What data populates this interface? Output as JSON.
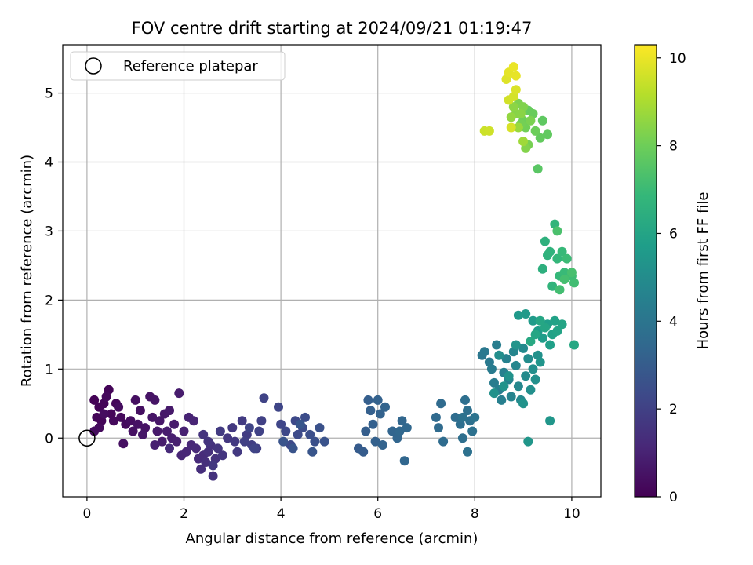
{
  "chart_data": {
    "type": "scatter",
    "title": "FOV centre drift starting at 2024/09/21 01:19:47",
    "xlabel": "Angular distance from reference (arcmin)",
    "ylabel": "Rotation from reference (arcmin)",
    "xlim": [
      -0.5,
      10.6
    ],
    "ylim": [
      -0.85,
      5.7
    ],
    "xticks": [
      "0",
      "2",
      "4",
      "6",
      "8",
      "10"
    ],
    "yticks": [
      "0",
      "1",
      "2",
      "3",
      "4",
      "5"
    ],
    "grid": true,
    "legend": {
      "position": "upper-left",
      "label": "Reference platepar"
    },
    "reference_point": {
      "x": 0,
      "y": 0
    },
    "colorbar": {
      "label": "Hours from first FF file",
      "range": [
        0,
        10.3
      ],
      "ticks": [
        "0",
        "2",
        "4",
        "6",
        "8",
        "10"
      ],
      "colormap": [
        "#440154",
        "#482878",
        "#3e4989",
        "#31688e",
        "#26828e",
        "#1f9e89",
        "#35b779",
        "#6ece58",
        "#b5de2b",
        "#fde725"
      ]
    },
    "points": [
      [
        0.15,
        0.55,
        0.05
      ],
      [
        0.25,
        0.45,
        0.08
      ],
      [
        0.35,
        0.5,
        0.1
      ],
      [
        0.45,
        0.7,
        0.12
      ],
      [
        0.2,
        0.3,
        0.14
      ],
      [
        0.3,
        0.25,
        0.16
      ],
      [
        0.5,
        0.35,
        0.18
      ],
      [
        0.6,
        0.5,
        0.2
      ],
      [
        0.4,
        0.6,
        0.22
      ],
      [
        0.55,
        0.25,
        0.24
      ],
      [
        0.7,
        0.3,
        0.26
      ],
      [
        0.8,
        0.2,
        0.28
      ],
      [
        0.25,
        0.15,
        0.3
      ],
      [
        0.15,
        0.1,
        0.32
      ],
      [
        0.65,
        0.45,
        0.34
      ],
      [
        0.35,
        0.35,
        0.36
      ],
      [
        0.9,
        0.25,
        0.38
      ],
      [
        1.0,
        0.55,
        0.4
      ],
      [
        1.1,
        0.4,
        0.42
      ],
      [
        0.75,
        -0.08,
        0.45
      ],
      [
        0.95,
        0.1,
        0.48
      ],
      [
        1.05,
        0.2,
        0.5
      ],
      [
        1.2,
        0.15,
        0.52
      ],
      [
        1.3,
        0.6,
        0.55
      ],
      [
        1.4,
        0.55,
        0.58
      ],
      [
        1.35,
        0.3,
        0.6
      ],
      [
        1.5,
        0.25,
        0.62
      ],
      [
        1.15,
        0.05,
        0.65
      ],
      [
        1.6,
        0.35,
        0.68
      ],
      [
        1.7,
        0.4,
        0.7
      ],
      [
        1.45,
        0.1,
        0.72
      ],
      [
        1.8,
        0.2,
        0.75
      ],
      [
        1.9,
        0.65,
        0.78
      ],
      [
        1.55,
        -0.05,
        0.8
      ],
      [
        1.65,
        0.1,
        0.82
      ],
      [
        1.75,
        0.0,
        0.85
      ],
      [
        1.4,
        -0.1,
        0.88
      ],
      [
        1.85,
        -0.05,
        0.9
      ],
      [
        2.0,
        0.1,
        0.95
      ],
      [
        2.1,
        0.3,
        1.0
      ],
      [
        2.2,
        0.25,
        1.05
      ],
      [
        1.95,
        -0.25,
        1.08
      ],
      [
        2.05,
        -0.2,
        1.1
      ],
      [
        2.15,
        -0.1,
        1.15
      ],
      [
        2.25,
        -0.15,
        1.2
      ],
      [
        1.7,
        -0.15,
        1.22
      ],
      [
        2.3,
        -0.3,
        1.25
      ],
      [
        2.4,
        -0.25,
        1.3
      ],
      [
        2.35,
        -0.45,
        1.35
      ],
      [
        2.45,
        -0.35,
        1.38
      ],
      [
        2.5,
        -0.2,
        1.42
      ],
      [
        2.55,
        -0.1,
        1.45
      ],
      [
        2.6,
        -0.55,
        1.48
      ],
      [
        2.65,
        -0.3,
        1.5
      ],
      [
        2.4,
        0.05,
        1.52
      ],
      [
        2.5,
        -0.05,
        1.55
      ],
      [
        2.7,
        -0.15,
        1.58
      ],
      [
        2.8,
        -0.25,
        1.6
      ],
      [
        2.9,
        0.0,
        1.65
      ],
      [
        2.6,
        -0.4,
        1.68
      ],
      [
        3.0,
        0.15,
        1.7
      ],
      [
        3.05,
        -0.05,
        1.72
      ],
      [
        3.1,
        -0.2,
        1.75
      ],
      [
        2.75,
        0.1,
        1.78
      ],
      [
        3.2,
        0.25,
        1.8
      ],
      [
        3.3,
        0.05,
        1.85
      ],
      [
        3.4,
        -0.1,
        1.9
      ],
      [
        3.5,
        -0.15,
        1.95
      ],
      [
        3.25,
        -0.05,
        1.98
      ],
      [
        3.6,
        0.25,
        2.0
      ],
      [
        3.55,
        0.1,
        2.05
      ],
      [
        3.65,
        0.58,
        2.08
      ],
      [
        3.45,
        -0.15,
        2.1
      ],
      [
        3.35,
        0.15,
        2.12
      ],
      [
        3.95,
        0.45,
        2.15
      ],
      [
        4.0,
        0.2,
        2.2
      ],
      [
        4.1,
        0.1,
        2.25
      ],
      [
        4.2,
        -0.1,
        2.28
      ],
      [
        4.3,
        0.25,
        2.3
      ],
      [
        4.35,
        0.05,
        2.35
      ],
      [
        4.45,
        0.15,
        2.4
      ],
      [
        4.5,
        0.3,
        2.45
      ],
      [
        4.6,
        0.05,
        2.5
      ],
      [
        4.7,
        -0.05,
        2.55
      ],
      [
        4.8,
        0.15,
        2.6
      ],
      [
        4.9,
        -0.05,
        2.65
      ],
      [
        4.05,
        -0.05,
        2.68
      ],
      [
        4.25,
        -0.15,
        2.7
      ],
      [
        4.65,
        -0.2,
        2.75
      ],
      [
        4.4,
        0.2,
        2.78
      ],
      [
        5.6,
        -0.15,
        2.95
      ],
      [
        5.7,
        -0.2,
        3.0
      ],
      [
        5.75,
        0.1,
        3.05
      ],
      [
        5.8,
        0.55,
        3.1
      ],
      [
        5.85,
        0.4,
        3.12
      ],
      [
        5.9,
        0.2,
        3.15
      ],
      [
        5.95,
        -0.05,
        3.18
      ],
      [
        6.0,
        0.55,
        3.2
      ],
      [
        6.05,
        0.35,
        3.22
      ],
      [
        6.1,
        -0.1,
        3.25
      ],
      [
        6.15,
        0.45,
        3.28
      ],
      [
        6.3,
        0.1,
        3.32
      ],
      [
        6.4,
        0.0,
        3.35
      ],
      [
        6.5,
        0.25,
        3.38
      ],
      [
        6.55,
        -0.33,
        3.4
      ],
      [
        6.6,
        0.15,
        3.42
      ],
      [
        6.45,
        0.1,
        3.45
      ],
      [
        7.2,
        0.3,
        3.5
      ],
      [
        7.25,
        0.15,
        3.55
      ],
      [
        7.3,
        0.5,
        3.58
      ],
      [
        7.35,
        -0.05,
        3.6
      ],
      [
        7.6,
        0.3,
        3.65
      ],
      [
        7.7,
        0.2,
        3.7
      ],
      [
        7.75,
        0.0,
        3.72
      ],
      [
        7.8,
        0.55,
        3.75
      ],
      [
        7.85,
        0.4,
        3.78
      ],
      [
        7.9,
        0.25,
        3.8
      ],
      [
        7.95,
        0.1,
        3.82
      ],
      [
        7.85,
        -0.2,
        3.85
      ],
      [
        7.75,
        0.3,
        3.88
      ],
      [
        8.0,
        0.3,
        3.9
      ],
      [
        8.15,
        1.2,
        4.1
      ],
      [
        8.2,
        1.25,
        4.15
      ],
      [
        8.3,
        1.1,
        4.2
      ],
      [
        8.35,
        1.0,
        4.25
      ],
      [
        8.4,
        0.8,
        4.3
      ],
      [
        8.45,
        1.35,
        4.35
      ],
      [
        8.5,
        0.7,
        4.4
      ],
      [
        8.55,
        0.55,
        4.45
      ],
      [
        8.6,
        0.95,
        4.5
      ],
      [
        8.65,
        1.15,
        4.55
      ],
      [
        8.7,
        0.85,
        4.6
      ],
      [
        8.75,
        0.6,
        4.65
      ],
      [
        8.8,
        1.25,
        4.7
      ],
      [
        8.85,
        1.05,
        4.75
      ],
      [
        8.9,
        0.75,
        4.8
      ],
      [
        8.95,
        0.55,
        4.85
      ],
      [
        9.0,
        1.3,
        4.9
      ],
      [
        9.05,
        0.9,
        4.95
      ],
      [
        9.1,
        1.15,
        5.0
      ],
      [
        8.5,
        1.2,
        5.05
      ],
      [
        9.15,
        0.7,
        5.1
      ],
      [
        9.2,
        1.0,
        5.12
      ],
      [
        9.25,
        0.85,
        5.15
      ],
      [
        9.3,
        1.2,
        5.18
      ],
      [
        8.4,
        0.65,
        5.2
      ],
      [
        8.7,
        0.9,
        5.22
      ],
      [
        9.0,
        0.5,
        5.25
      ],
      [
        8.85,
        1.35,
        5.3
      ],
      [
        8.6,
        0.75,
        5.32
      ],
      [
        9.35,
        1.1,
        5.35
      ],
      [
        9.1,
        -0.05,
        5.38
      ],
      [
        9.55,
        0.25,
        5.4
      ],
      [
        8.9,
        1.78,
        5.5
      ],
      [
        9.05,
        1.8,
        5.55
      ],
      [
        9.2,
        1.7,
        5.6
      ],
      [
        9.3,
        1.55,
        5.65
      ],
      [
        9.4,
        1.45,
        5.7
      ],
      [
        9.5,
        1.65,
        5.75
      ],
      [
        9.55,
        1.35,
        5.8
      ],
      [
        9.6,
        1.5,
        5.85
      ],
      [
        9.65,
        1.7,
        5.9
      ],
      [
        9.7,
        1.55,
        5.95
      ],
      [
        9.8,
        1.65,
        6.0
      ],
      [
        9.45,
        1.6,
        6.05
      ],
      [
        9.35,
        1.7,
        6.08
      ],
      [
        9.25,
        1.5,
        6.1
      ],
      [
        10.05,
        1.35,
        6.15
      ],
      [
        9.15,
        1.4,
        6.2
      ],
      [
        9.4,
        2.45,
        6.5
      ],
      [
        9.45,
        2.85,
        6.55
      ],
      [
        9.5,
        2.65,
        6.6
      ],
      [
        9.55,
        2.7,
        6.65
      ],
      [
        9.6,
        2.2,
        6.7
      ],
      [
        9.65,
        3.1,
        6.75
      ],
      [
        9.7,
        2.6,
        6.8
      ],
      [
        9.75,
        2.35,
        6.85
      ],
      [
        9.8,
        2.7,
        6.9
      ],
      [
        9.85,
        2.4,
        6.95
      ],
      [
        9.9,
        2.6,
        7.0
      ],
      [
        10.0,
        2.35,
        7.05
      ],
      [
        10.05,
        2.25,
        7.1
      ],
      [
        9.75,
        2.15,
        7.15
      ],
      [
        9.85,
        2.3,
        7.2
      ],
      [
        10.0,
        2.4,
        7.25
      ],
      [
        9.7,
        3.0,
        7.3
      ],
      [
        9.3,
        3.9,
        7.6
      ],
      [
        9.4,
        4.6,
        7.7
      ],
      [
        9.5,
        4.4,
        7.75
      ],
      [
        9.35,
        4.35,
        7.8
      ],
      [
        9.1,
        4.75,
        7.85
      ],
      [
        9.2,
        4.7,
        7.9
      ],
      [
        9.25,
        4.45,
        7.95
      ],
      [
        9.0,
        4.6,
        8.0
      ],
      [
        9.05,
        4.5,
        8.05
      ],
      [
        8.95,
        4.55,
        8.1
      ],
      [
        9.1,
        4.25,
        8.15
      ],
      [
        9.15,
        4.6,
        8.2
      ],
      [
        8.9,
        4.85,
        8.25
      ],
      [
        9.0,
        4.8,
        8.3
      ],
      [
        9.05,
        4.2,
        8.35
      ],
      [
        8.85,
        4.7,
        8.4
      ],
      [
        8.95,
        4.7,
        8.45
      ],
      [
        8.8,
        4.8,
        8.5
      ],
      [
        8.75,
        4.65,
        8.6
      ],
      [
        8.9,
        4.5,
        8.7
      ],
      [
        9.0,
        4.3,
        8.8
      ],
      [
        8.2,
        4.45,
        9.5
      ],
      [
        8.3,
        4.45,
        9.55
      ],
      [
        8.7,
        4.9,
        9.6
      ],
      [
        8.8,
        4.95,
        9.65
      ],
      [
        8.75,
        4.5,
        9.7
      ],
      [
        8.85,
        5.05,
        9.75
      ],
      [
        8.65,
        5.2,
        9.8
      ],
      [
        8.7,
        5.3,
        9.9
      ],
      [
        8.85,
        5.25,
        9.95
      ],
      [
        8.8,
        5.38,
        10.0
      ]
    ]
  }
}
